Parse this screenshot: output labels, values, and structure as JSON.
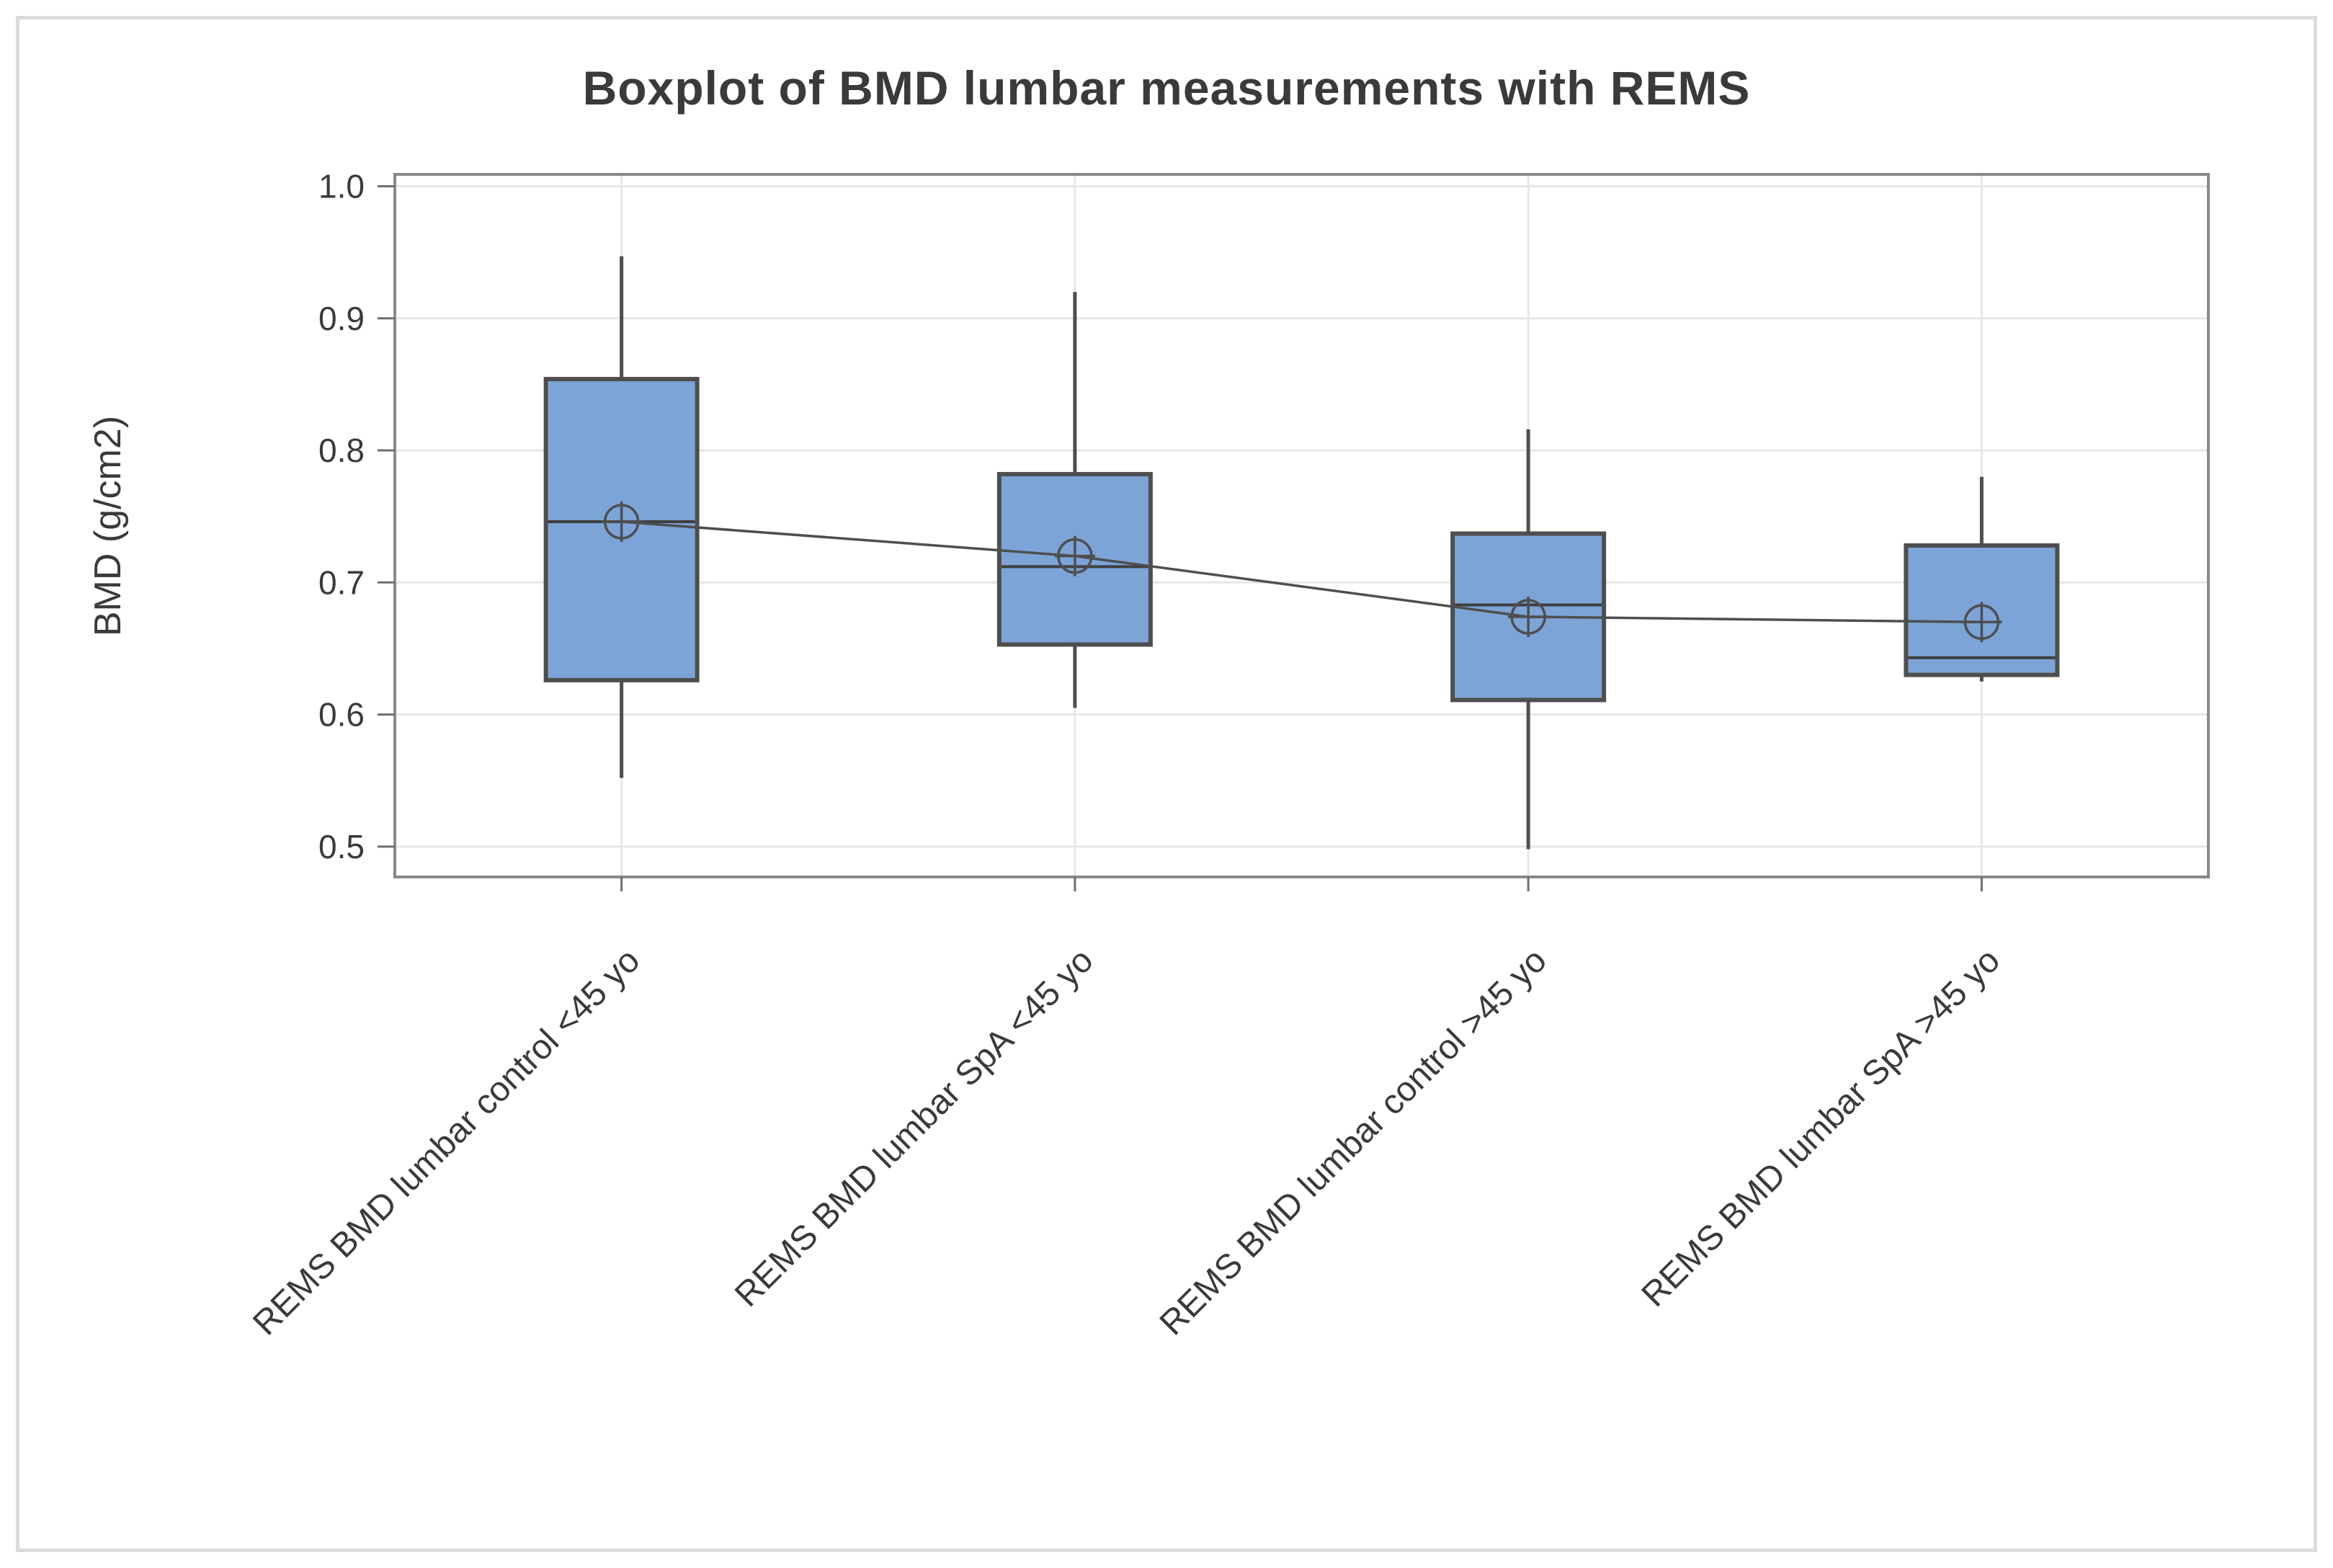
{
  "figure": {
    "background_color": "#ffffff",
    "frame_color": "#dcdcdc"
  },
  "chart_data": {
    "type": "boxplot",
    "title": "Boxplot of BMD lumbar measurements with REMS",
    "ylabel": "BMD (g/cm2)",
    "xlabel": "",
    "categories": [
      "REMS BMD lumbar control <45 yo",
      "REMS BMD lumbar SpA <45 yo",
      "REMS BMD lumbar control >45 yo",
      "REMS BMD lumbar SpA >45 yo"
    ],
    "series": [
      {
        "name": "REMS BMD lumbar control <45 yo",
        "whisker_low": 0.552,
        "q1": 0.626,
        "median": 0.746,
        "q3": 0.854,
        "whisker_high": 0.947,
        "mean": 0.746
      },
      {
        "name": "REMS BMD lumbar SpA <45 yo",
        "whisker_low": 0.605,
        "q1": 0.653,
        "median": 0.712,
        "q3": 0.782,
        "whisker_high": 0.92,
        "mean": 0.72
      },
      {
        "name": "REMS BMD lumbar control >45 yo",
        "whisker_low": 0.498,
        "q1": 0.611,
        "median": 0.683,
        "q3": 0.737,
        "whisker_high": 0.816,
        "mean": 0.674
      },
      {
        "name": "REMS BMD lumbar SpA >45 yo",
        "whisker_low": 0.625,
        "q1": 0.63,
        "median": 0.643,
        "q3": 0.728,
        "whisker_high": 0.78,
        "mean": 0.67
      }
    ],
    "mean_connector": true,
    "y_ticks": [
      {
        "v": 1.0,
        "label": "1.0"
      },
      {
        "v": 0.9,
        "label": "0.9"
      },
      {
        "v": 0.8,
        "label": "0.8"
      },
      {
        "v": 0.7,
        "label": "0.7"
      },
      {
        "v": 0.6,
        "label": "0.6"
      },
      {
        "v": 0.5,
        "label": "0.5"
      }
    ],
    "ylim": [
      0.477,
      1.009
    ],
    "grid": true,
    "legend": false,
    "colors": {
      "box_fill": "#7CA4D7",
      "box_border": "#4E4E4E",
      "whisker": "#4E4E4E",
      "median": "#3F3F3F",
      "mean_marker": "#4E4E4E",
      "connector": "#4E4E4E",
      "grid": "#E6E6E6",
      "axis": "#8A8A8A",
      "tick": "#6E6E6E",
      "text": "#3A3A3A"
    }
  }
}
